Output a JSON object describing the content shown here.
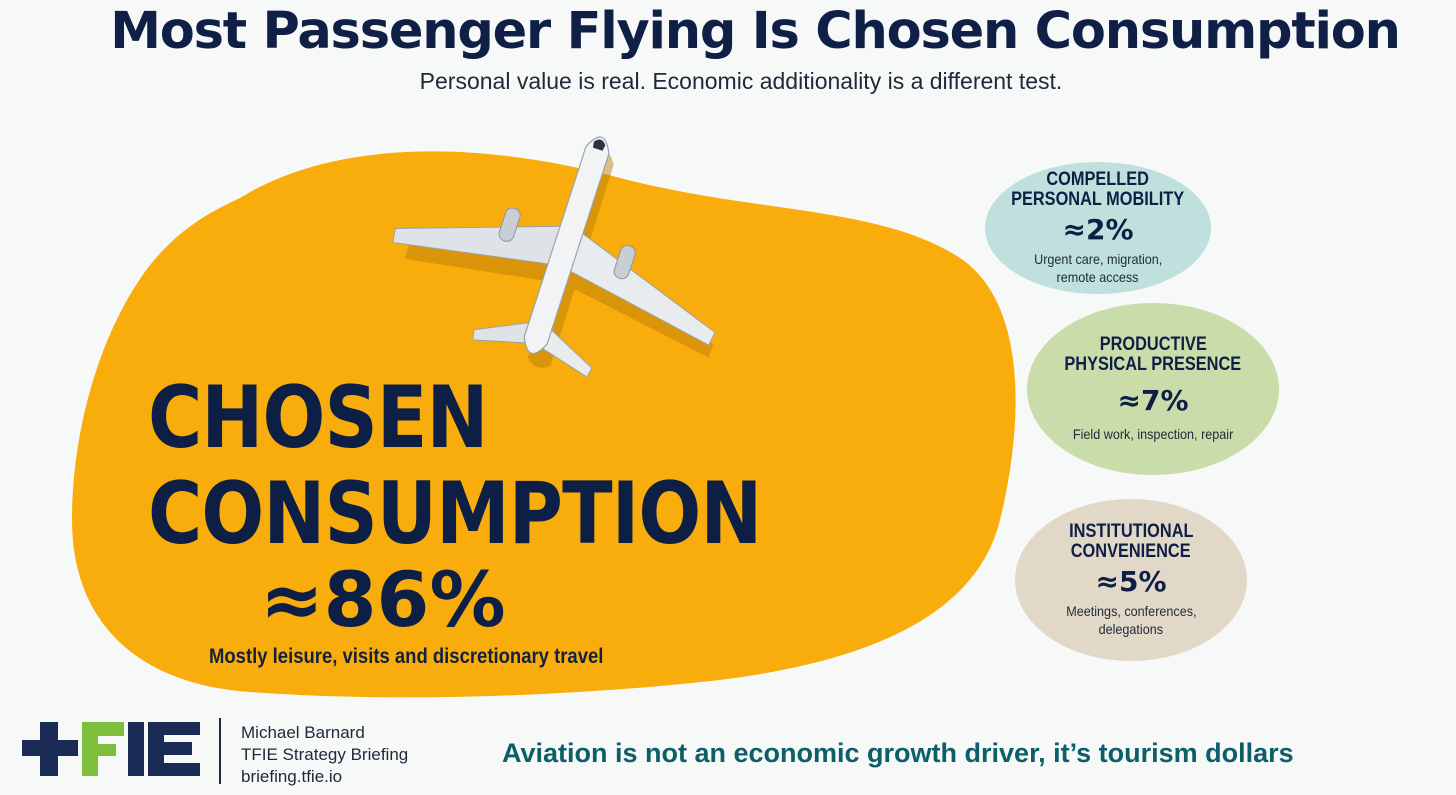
{
  "header": {
    "title": "Most Passenger Flying Is Chosen Consumption",
    "subtitle": "Personal value is real. Economic additionality is a different test."
  },
  "main_category": {
    "label_line1": "CHOSEN",
    "label_line2": "CONSUMPTION",
    "percent": "≈86%",
    "description": "Mostly leisure, visits and discretionary travel",
    "color": "#f9ad0c",
    "share": 86
  },
  "categories": [
    {
      "title_line1": "COMPELLED",
      "title_line2": "PERSONAL MOBILITY",
      "percent": "≈2%",
      "desc_line1": "Urgent care, migration,",
      "desc_line2": "remote access",
      "color": "#bfe0dc",
      "share": 2
    },
    {
      "title_line1": "PRODUCTIVE",
      "title_line2": "PHYSICAL PRESENCE",
      "percent": "≈7%",
      "desc_line1": "Field work, inspection, repair",
      "desc_line2": "",
      "color": "#c9dcaa",
      "share": 7
    },
    {
      "title_line1": "INSTITUTIONAL",
      "title_line2": "CONVENIENCE",
      "percent": "≈5%",
      "desc_line1": "Meetings, conferences,",
      "desc_line2": "delegations",
      "color": "#e2d8c8",
      "share": 5
    }
  ],
  "footer": {
    "logo_icon": "tfie-logo-icon",
    "author_name": "Michael Barnard",
    "publication": "TFIE Strategy Briefing",
    "website": "briefing.tfie.io",
    "tagline": "Aviation is not an economic growth driver, it’s tourism dollars"
  },
  "illustration_icon": "airplane-icon"
}
